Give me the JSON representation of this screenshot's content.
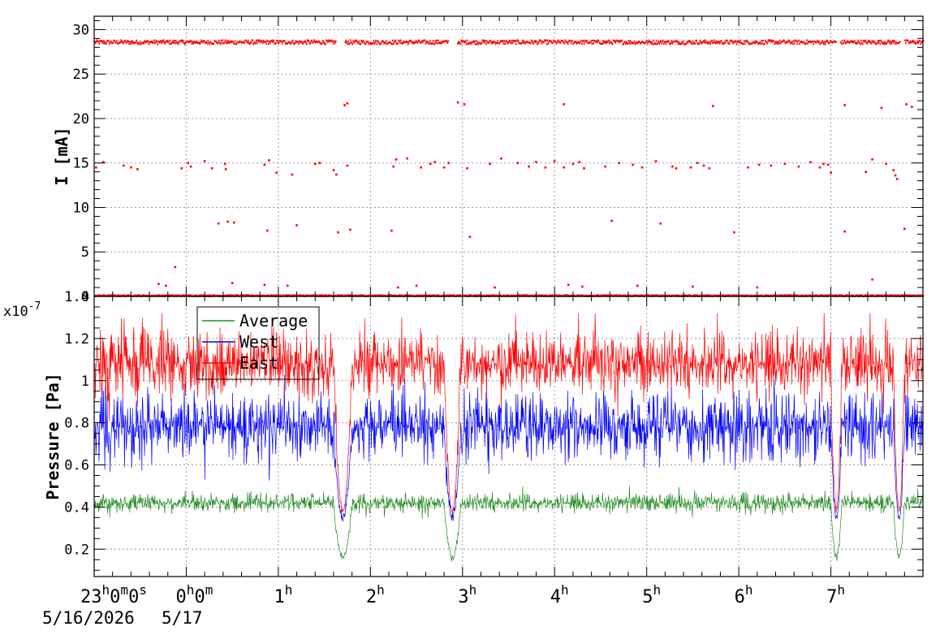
{
  "chart_data": [
    {
      "type": "scatter",
      "ylabel": "I [mA]",
      "ylim": [
        0,
        31.5
      ],
      "yticks": [
        "0",
        "5",
        "10",
        "15",
        "20",
        "25",
        "30"
      ],
      "grid": true,
      "series_color": "#ff0000",
      "x_unit": "hours since 23:00 5/16/2026",
      "bands": [
        {
          "level": 28.6,
          "segments": [
            [
              -1.0,
              1.62
            ],
            [
              1.72,
              2.84
            ],
            [
              2.94,
              7.05
            ],
            [
              7.1,
              7.75
            ],
            [
              7.8,
              8.0
            ]
          ],
          "noise": 0.45
        },
        {
          "level": 0.1,
          "segments": [
            [
              -1.0,
              8.0
            ]
          ],
          "noise": 0.12
        }
      ],
      "points": [
        {
          "x": -0.98,
          "y": 14.5
        },
        {
          "x": -0.9,
          "y": 15.1
        },
        {
          "x": -0.68,
          "y": 14.7
        },
        {
          "x": -0.6,
          "y": 14.5
        },
        {
          "x": -0.53,
          "y": 14.3
        },
        {
          "x": -0.05,
          "y": 14.4
        },
        {
          "x": 0.02,
          "y": 15.0
        },
        {
          "x": 0.05,
          "y": 14.6
        },
        {
          "x": 0.2,
          "y": 15.2
        },
        {
          "x": 0.28,
          "y": 14.4
        },
        {
          "x": 0.42,
          "y": 14.9
        },
        {
          "x": 0.43,
          "y": 14.3
        },
        {
          "x": 0.85,
          "y": 14.8
        },
        {
          "x": 0.9,
          "y": 15.3
        },
        {
          "x": 0.98,
          "y": 13.9
        },
        {
          "x": 1.15,
          "y": 13.7
        },
        {
          "x": 1.4,
          "y": 14.9
        },
        {
          "x": 1.45,
          "y": 15.0
        },
        {
          "x": 1.6,
          "y": 14.2
        },
        {
          "x": 1.63,
          "y": 13.7
        },
        {
          "x": 1.75,
          "y": 14.7
        },
        {
          "x": 2.25,
          "y": 14.6
        },
        {
          "x": 2.28,
          "y": 15.4
        },
        {
          "x": 2.4,
          "y": 15.5
        },
        {
          "x": 2.55,
          "y": 14.5
        },
        {
          "x": 2.65,
          "y": 14.9
        },
        {
          "x": 2.7,
          "y": 15.1
        },
        {
          "x": 2.8,
          "y": 14.5
        },
        {
          "x": 2.85,
          "y": 15.0
        },
        {
          "x": 3.05,
          "y": 14.4
        },
        {
          "x": 3.3,
          "y": 14.9
        },
        {
          "x": 3.42,
          "y": 15.5
        },
        {
          "x": 3.6,
          "y": 15.0
        },
        {
          "x": 3.72,
          "y": 14.6
        },
        {
          "x": 3.8,
          "y": 15.1
        },
        {
          "x": 3.9,
          "y": 14.5
        },
        {
          "x": 4.0,
          "y": 15.2
        },
        {
          "x": 4.1,
          "y": 14.5
        },
        {
          "x": 4.2,
          "y": 14.9
        },
        {
          "x": 4.27,
          "y": 15.1
        },
        {
          "x": 4.32,
          "y": 14.4
        },
        {
          "x": 4.55,
          "y": 14.6
        },
        {
          "x": 4.7,
          "y": 15.0
        },
        {
          "x": 4.85,
          "y": 14.8
        },
        {
          "x": 4.95,
          "y": 14.5
        },
        {
          "x": 5.1,
          "y": 15.2
        },
        {
          "x": 5.28,
          "y": 14.6
        },
        {
          "x": 5.32,
          "y": 14.4
        },
        {
          "x": 5.48,
          "y": 14.5
        },
        {
          "x": 5.55,
          "y": 15.0
        },
        {
          "x": 5.62,
          "y": 14.7
        },
        {
          "x": 5.68,
          "y": 14.4
        },
        {
          "x": 6.1,
          "y": 14.5
        },
        {
          "x": 6.22,
          "y": 14.8
        },
        {
          "x": 6.35,
          "y": 14.7
        },
        {
          "x": 6.5,
          "y": 14.9
        },
        {
          "x": 6.65,
          "y": 14.6
        },
        {
          "x": 6.78,
          "y": 15.1
        },
        {
          "x": 6.88,
          "y": 14.5
        },
        {
          "x": 6.92,
          "y": 14.9
        },
        {
          "x": 6.97,
          "y": 14.8
        },
        {
          "x": 7.0,
          "y": 13.9
        },
        {
          "x": 7.38,
          "y": 14.0
        },
        {
          "x": 7.45,
          "y": 15.4
        },
        {
          "x": 7.6,
          "y": 14.9
        },
        {
          "x": 7.68,
          "y": 14.2
        },
        {
          "x": 7.7,
          "y": 13.6
        },
        {
          "x": 7.72,
          "y": 13.2
        },
        {
          "x": 1.72,
          "y": 21.5
        },
        {
          "x": 1.75,
          "y": 21.7
        },
        {
          "x": 2.95,
          "y": 21.8
        },
        {
          "x": 3.02,
          "y": 21.6
        },
        {
          "x": 4.1,
          "y": 21.6
        },
        {
          "x": 5.72,
          "y": 21.4
        },
        {
          "x": 7.15,
          "y": 21.5
        },
        {
          "x": 7.55,
          "y": 21.2
        },
        {
          "x": 7.82,
          "y": 21.6
        },
        {
          "x": 7.88,
          "y": 21.3
        },
        {
          "x": 0.35,
          "y": 8.2
        },
        {
          "x": 0.45,
          "y": 8.4
        },
        {
          "x": 0.52,
          "y": 8.3
        },
        {
          "x": 0.88,
          "y": 7.4
        },
        {
          "x": 1.2,
          "y": 8.0
        },
        {
          "x": 1.65,
          "y": 7.2
        },
        {
          "x": 1.78,
          "y": 7.5
        },
        {
          "x": 2.23,
          "y": 7.4
        },
        {
          "x": 3.08,
          "y": 6.7
        },
        {
          "x": 4.62,
          "y": 8.5
        },
        {
          "x": 5.15,
          "y": 8.2
        },
        {
          "x": 5.95,
          "y": 7.2
        },
        {
          "x": 7.15,
          "y": 7.3
        },
        {
          "x": 7.8,
          "y": 7.6
        },
        {
          "x": -0.12,
          "y": 3.3
        },
        {
          "x": -0.3,
          "y": 1.4
        },
        {
          "x": -0.22,
          "y": 1.2
        },
        {
          "x": 0.5,
          "y": 1.5
        },
        {
          "x": 0.85,
          "y": 1.3
        },
        {
          "x": 1.1,
          "y": 1.2
        },
        {
          "x": 2.3,
          "y": 1.0
        },
        {
          "x": 2.5,
          "y": 1.2
        },
        {
          "x": 3.35,
          "y": 1.0
        },
        {
          "x": 4.15,
          "y": 1.3
        },
        {
          "x": 4.3,
          "y": 1.1
        },
        {
          "x": 4.9,
          "y": 1.2
        },
        {
          "x": 5.5,
          "y": 1.1
        },
        {
          "x": 6.2,
          "y": 1.0
        },
        {
          "x": 7.45,
          "y": 1.9
        }
      ],
      "missing_segments": [
        [
          1.62,
          1.72
        ],
        [
          2.84,
          2.94
        ],
        [
          7.05,
          7.1
        ]
      ]
    },
    {
      "type": "line",
      "ylabel": "Pressure [Pa]",
      "y_multiplier": "x10",
      "y_exponent": "-7",
      "ylim": [
        0.07,
        1.4
      ],
      "yticks": [
        "0.2",
        "0.4",
        "0.6",
        "0.8",
        "1",
        "1.2",
        "1.4"
      ],
      "grid": true,
      "legend_position": "top-left",
      "dips": [
        [
          1.6,
          1.8
        ],
        [
          2.8,
          2.98
        ],
        [
          7.0,
          7.12
        ],
        [
          7.68,
          7.8
        ]
      ],
      "series": [
        {
          "name": "Average",
          "color": "#228b22",
          "base": 0.42,
          "spread": 0.07,
          "dip_low": 0.16
        },
        {
          "name": "West",
          "color": "#0000ff",
          "base": 0.78,
          "spread": 0.25,
          "dip_low": 0.35
        },
        {
          "name": "East",
          "color": "#ff0000",
          "base": 1.08,
          "spread": 0.25,
          "dip_low": 0.38
        }
      ],
      "xticks": [
        "23h0m0s",
        "0h0m",
        "1h",
        "2h",
        "3h",
        "4h",
        "5h",
        "6h",
        "7h"
      ],
      "x_date_labels": [
        "5/16/2026",
        "5/17"
      ],
      "xlim": [
        -1.0,
        8.0
      ]
    }
  ]
}
